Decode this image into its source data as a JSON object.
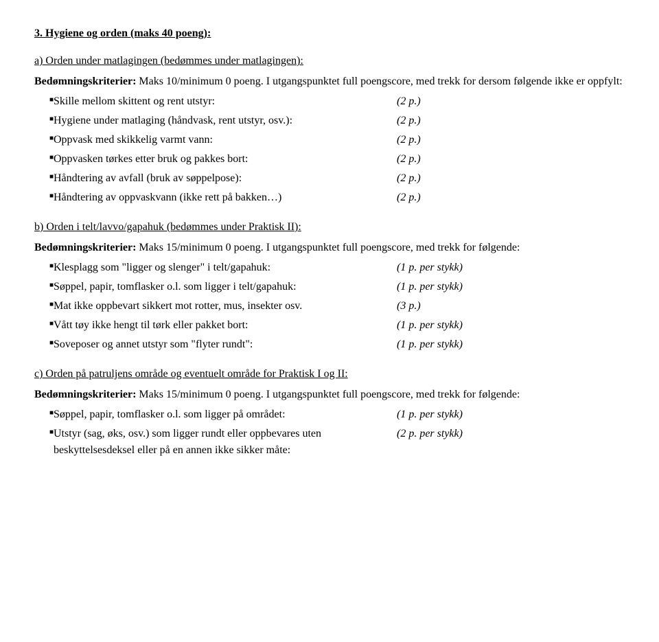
{
  "section3": {
    "heading": "3. Hygiene og orden (maks 40 poeng):",
    "a": {
      "sub": "a) Orden under matlagingen (bedømmes under matlagingen):",
      "criteria_prefix": "Bedømningskriterier:",
      "criteria_text": " Maks 10/minimum 0 poeng. I utgangspunktet full poengscore, med trekk for dersom følgende ikke er oppfylt:",
      "items": [
        {
          "label": "Skille mellom skittent og rent utstyr:",
          "points": "(2 p.)"
        },
        {
          "label": "Hygiene under matlaging (håndvask, rent utstyr, osv.):",
          "points": "(2 p.)"
        },
        {
          "label": "Oppvask med skikkelig varmt vann:",
          "points": "(2 p.)"
        },
        {
          "label": "Oppvasken tørkes etter bruk og pakkes bort:",
          "points": "(2 p.)"
        },
        {
          "label": "Håndtering av avfall (bruk av søppelpose):",
          "points": "(2 p.)"
        },
        {
          "label": "Håndtering av oppvaskvann (ikke rett på bakken…)",
          "points": "(2 p.)"
        }
      ]
    },
    "b": {
      "sub": "b) Orden i telt/lavvo/gapahuk (bedømmes under Praktisk II):",
      "criteria_prefix": "Bedømningskriterier:",
      "criteria_text": " Maks 15/minimum 0 poeng. I utgangspunktet full poengscore, med trekk for følgende:",
      "items": [
        {
          "label": "Klesplagg som \"ligger og slenger\" i telt/gapahuk:",
          "points": "(1 p. per stykk)"
        },
        {
          "label": "Søppel, papir, tomflasker o.l. som ligger i telt/gapahuk:",
          "points": "(1 p. per stykk)"
        },
        {
          "label": "Mat ikke oppbevart sikkert mot rotter, mus, insekter osv.",
          "points": "(3 p.)"
        },
        {
          "label": "Vått tøy ikke hengt til tørk eller pakket bort:",
          "points": "(1 p. per stykk)"
        },
        {
          "label": "Soveposer og annet utstyr som \"flyter rundt\":",
          "points": "(1 p. per stykk)"
        }
      ]
    },
    "c": {
      "sub": "c) Orden på patruljens område og eventuelt område for Praktisk I og II:",
      "criteria_prefix": "Bedømningskriterier:",
      "criteria_text": " Maks 15/minimum 0 poeng. I utgangspunktet full poengscore, med trekk for følgende:",
      "items": [
        {
          "label": "Søppel, papir, tomflasker o.l. som ligger på området:",
          "points": "(1 p. per stykk)"
        },
        {
          "label": "Utstyr (sag, øks, osv.) som ligger rundt eller oppbevares uten beskyttelsesdeksel eller på en annen ikke sikker måte:",
          "points": "(2 p. per stykk)"
        }
      ]
    }
  }
}
